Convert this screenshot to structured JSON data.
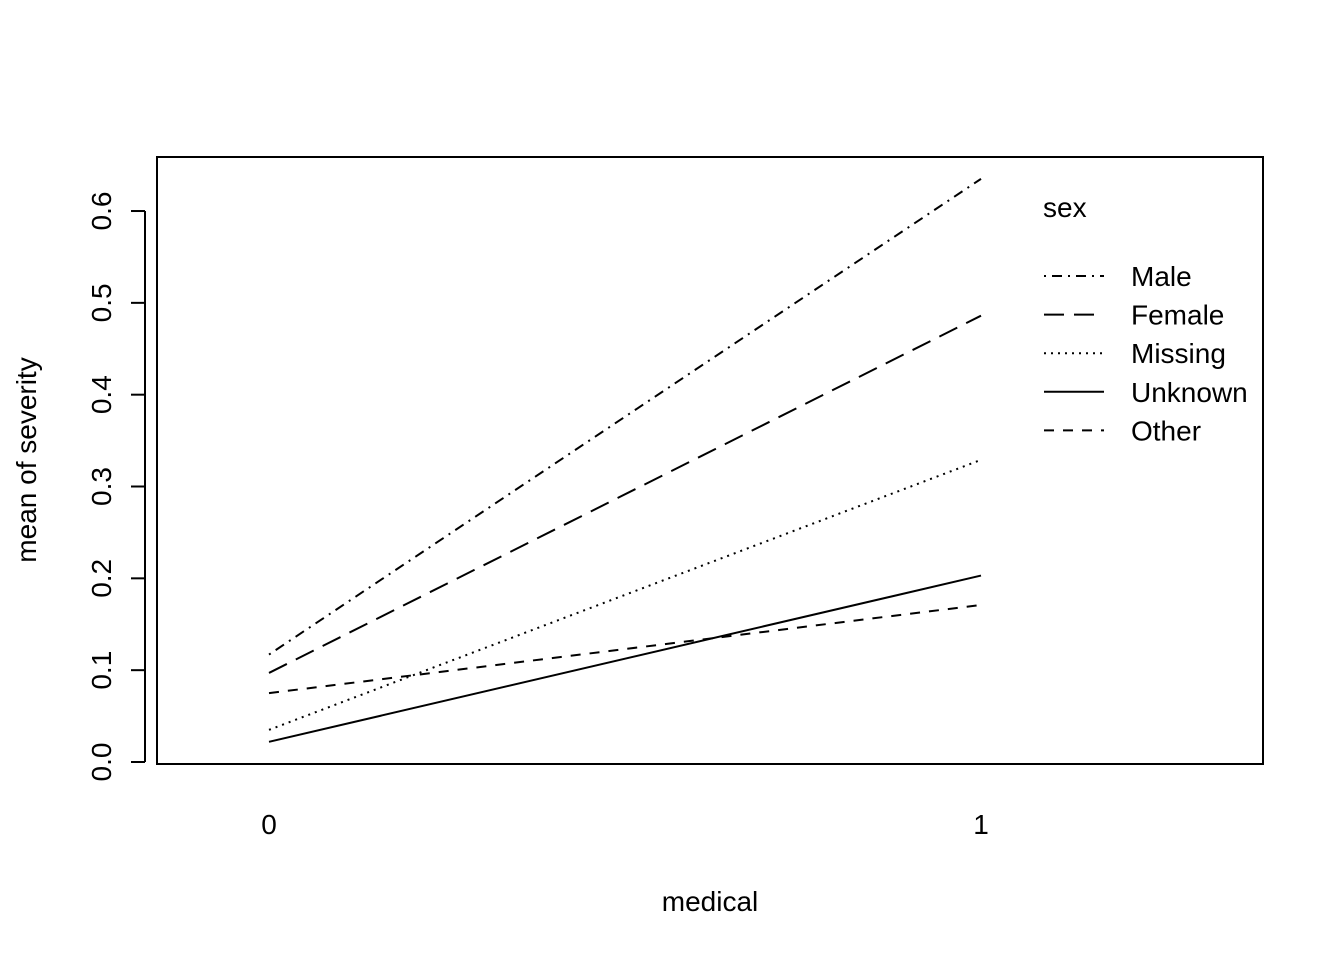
{
  "chart_data": {
    "type": "line",
    "title": "",
    "xlabel": "medical",
    "ylabel": "mean of  severity",
    "categories": [
      "0",
      "1"
    ],
    "ylim": [
      0.0,
      0.6
    ],
    "yticks": [
      "0.0",
      "0.1",
      "0.2",
      "0.3",
      "0.4",
      "0.5",
      "0.6"
    ],
    "grid": false,
    "legend": {
      "title": "sex",
      "placement": "top-right"
    },
    "series": [
      {
        "name": "Male",
        "values": [
          0.117,
          0.635
        ],
        "dash": "dotdash",
        "color": "#000000"
      },
      {
        "name": "Female",
        "values": [
          0.097,
          0.486
        ],
        "dash": "longdash",
        "color": "#000000"
      },
      {
        "name": "Missing",
        "values": [
          0.035,
          0.329
        ],
        "dash": "dotted",
        "color": "#000000"
      },
      {
        "name": "Unknown",
        "values": [
          0.022,
          0.203
        ],
        "dash": "solid",
        "color": "#000000"
      },
      {
        "name": "Other",
        "values": [
          0.075,
          0.171
        ],
        "dash": "dashed",
        "color": "#000000"
      }
    ]
  }
}
